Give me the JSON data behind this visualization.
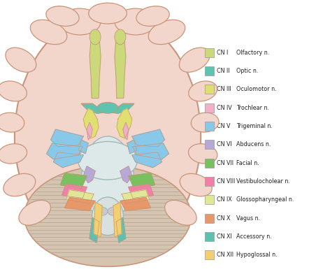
{
  "background_color": "#ffffff",
  "brain_color": "#f2d5cb",
  "brain_outline": "#c8957a",
  "gyri_color": "#c8957a",
  "cerebellum_color": "#d4c4b0",
  "cerebellum_stripe": "#b8a898",
  "brainstem_color": "#e8e8e8",
  "brainstem_outline": "#b0b0b0",
  "legend_entries": [
    {
      "cn": "CN I",
      "name": "Olfactory n.",
      "color": "#ccd97a"
    },
    {
      "cn": "CN II",
      "name": "Optic n.",
      "color": "#5ec4b0"
    },
    {
      "cn": "CN III",
      "name": "Oculomotor n.",
      "color": "#e0e070"
    },
    {
      "cn": "CN IV",
      "name": "Trochlear n.",
      "color": "#f0b0c8"
    },
    {
      "cn": "CN V",
      "name": "Trigeminal n.",
      "color": "#88c8e8"
    },
    {
      "cn": "CN VI",
      "name": "Abducens n.",
      "color": "#b8a8d8"
    },
    {
      "cn": "CN VII",
      "name": "Facial n.",
      "color": "#78c060"
    },
    {
      "cn": "CN VIII",
      "name": "Vestibulocholear n.",
      "color": "#f080a8"
    },
    {
      "cn": "CN IX",
      "name": "Glossopharyngeal n.",
      "color": "#e0e898"
    },
    {
      "cn": "CN X",
      "name": "Vagus n.",
      "color": "#e89868"
    },
    {
      "cn": "CN XI",
      "name": "Accessory n.",
      "color": "#60c0b0"
    },
    {
      "cn": "CN XII",
      "name": "Hypoglossal n.",
      "color": "#f0d070"
    }
  ]
}
